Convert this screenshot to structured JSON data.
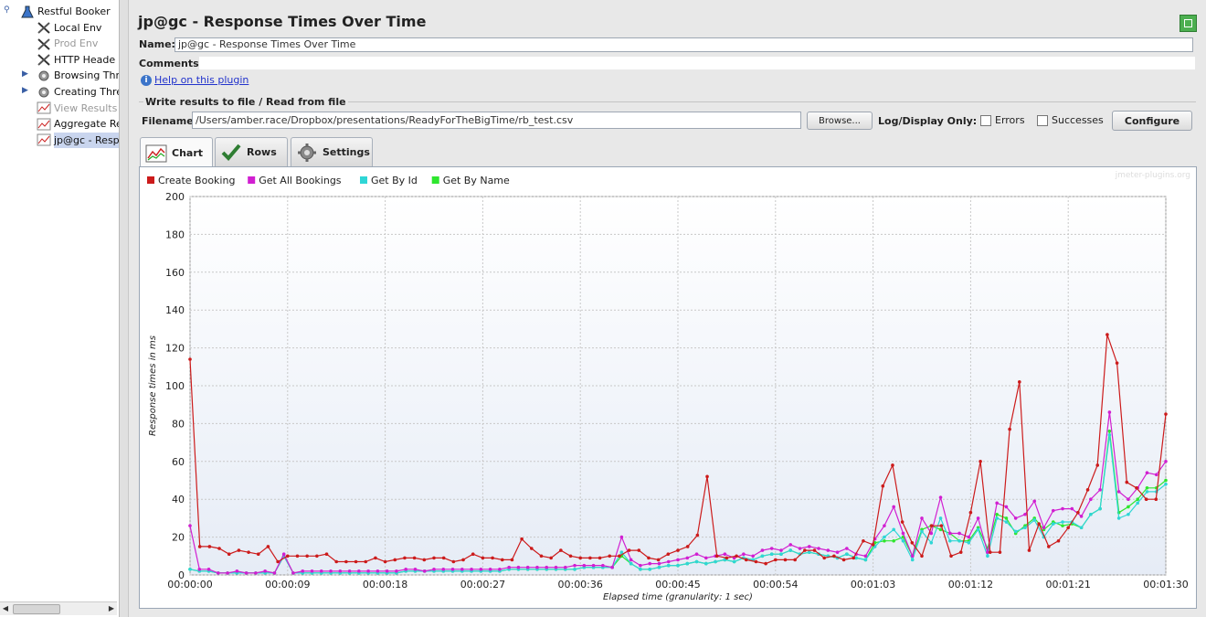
{
  "tree": {
    "items": [
      {
        "label": "Restful Booker",
        "icon": "flask-icon",
        "level": 0,
        "state": "normal"
      },
      {
        "label": "Local Env",
        "icon": "wrench-icon",
        "level": 1,
        "state": "normal"
      },
      {
        "label": "Prod Env",
        "icon": "wrench-icon",
        "level": 1,
        "state": "disabled"
      },
      {
        "label": "HTTP Heade",
        "icon": "wrench-icon",
        "level": 1,
        "state": "normal"
      },
      {
        "label": "Browsing Thr",
        "icon": "gear-icon",
        "level": 1,
        "state": "normal"
      },
      {
        "label": "Creating Thre",
        "icon": "gear-icon",
        "level": 1,
        "state": "normal"
      },
      {
        "label": "View Results",
        "icon": "graph-icon",
        "level": 1,
        "state": "disabled"
      },
      {
        "label": "Aggregate Re",
        "icon": "graph-icon",
        "level": 1,
        "state": "normal"
      },
      {
        "label": "jp@gc - Resp",
        "icon": "graph-icon",
        "level": 1,
        "state": "selected"
      }
    ]
  },
  "panel": {
    "title": "jp@gc - Response Times Over Time",
    "name_label": "Name:",
    "name_value": "jp@gc - Response Times Over Time",
    "comments_label": "Comments:",
    "help_link": "Help on this plugin",
    "file_section": "Write results to file / Read from file",
    "filename_label": "Filename",
    "filename_value": "/Users/amber.race/Dropbox/presentations/ReadyForTheBigTime/rb_test.csv",
    "browse_label": "Browse...",
    "log_display_label": "Log/Display Only:",
    "errors_label": "Errors",
    "successes_label": "Successes",
    "configure_label": "Configure"
  },
  "tabs": [
    {
      "label": "Chart"
    },
    {
      "label": "Rows"
    },
    {
      "label": "Settings"
    }
  ],
  "watermark": "jmeter-plugins.org",
  "colors": {
    "accent": "#3b74c9",
    "selected": "#c9d5ee"
  },
  "chart_data": {
    "type": "line",
    "title": "",
    "xlabel": "Elapsed time (granularity: 1 sec)",
    "ylabel": "Response times in ms",
    "ylim": [
      0,
      200
    ],
    "yticks": [
      0,
      20,
      40,
      60,
      80,
      100,
      120,
      140,
      160,
      180,
      200
    ],
    "xlim": [
      0,
      90
    ],
    "xtick_labels": [
      "00:00:00",
      "00:00:09",
      "00:00:18",
      "00:00:27",
      "00:00:36",
      "00:00:45",
      "00:00:54",
      "00:01:03",
      "00:01:12",
      "00:01:21",
      "00:01:30"
    ],
    "legend_position": "top-left",
    "series": [
      {
        "name": "Create Booking",
        "color": "#cc1b1b",
        "values": [
          114,
          15,
          15,
          14,
          11,
          13,
          12,
          11,
          15,
          7,
          10,
          10,
          10,
          10,
          11,
          7,
          7,
          7,
          7,
          9,
          7,
          8,
          9,
          9,
          8,
          9,
          9,
          7,
          8,
          11,
          9,
          9,
          8,
          8,
          19,
          14,
          10,
          9,
          13,
          10,
          9,
          9,
          9,
          10,
          10,
          13,
          13,
          9,
          8,
          11,
          13,
          15,
          21,
          52,
          10,
          9,
          10,
          8,
          7,
          6,
          8,
          8,
          8,
          13,
          13,
          9,
          10,
          8,
          9,
          18,
          16,
          47,
          58,
          28,
          17,
          10,
          26,
          26,
          10,
          12,
          33,
          60,
          12,
          12,
          77,
          102,
          13,
          27,
          15,
          18,
          25,
          33,
          45,
          58,
          127,
          112,
          49,
          46,
          40,
          40,
          85
        ]
      },
      {
        "name": "Get All Bookings",
        "color": "#d11fd1",
        "values": [
          26,
          3,
          3,
          1,
          1,
          2,
          1,
          1,
          2,
          1,
          11,
          1,
          2,
          2,
          2,
          2,
          2,
          2,
          2,
          2,
          2,
          2,
          2,
          3,
          3,
          2,
          3,
          3,
          3,
          3,
          3,
          3,
          3,
          3,
          4,
          4,
          4,
          4,
          4,
          4,
          4,
          5,
          5,
          5,
          5,
          4,
          20,
          8,
          5,
          6,
          6,
          7,
          8,
          9,
          11,
          9,
          10,
          11,
          9,
          11,
          10,
          13,
          14,
          13,
          16,
          14,
          15,
          14,
          13,
          12,
          14,
          11,
          10,
          19,
          26,
          36,
          22,
          10,
          30,
          22,
          41,
          22,
          22,
          20,
          30,
          12,
          38,
          36,
          30,
          32,
          39,
          25,
          34,
          35,
          35,
          31,
          40,
          45,
          86,
          44,
          40,
          46,
          54,
          53,
          60
        ]
      },
      {
        "name": "Get By Id",
        "color": "#2fd6d6",
        "values": [
          3,
          2,
          2,
          1,
          1,
          1,
          1,
          1,
          1,
          1,
          10,
          1,
          1,
          1,
          1,
          1,
          1,
          1,
          1,
          1,
          1,
          1,
          1,
          2,
          2,
          2,
          2,
          2,
          2,
          2,
          2,
          2,
          2,
          2,
          3,
          3,
          3,
          3,
          3,
          3,
          3,
          3,
          4,
          4,
          4,
          4,
          12,
          6,
          3,
          3,
          4,
          5,
          5,
          6,
          7,
          6,
          7,
          8,
          7,
          9,
          8,
          10,
          11,
          11,
          13,
          11,
          12,
          11,
          10,
          9,
          11,
          9,
          8,
          15,
          20,
          24,
          18,
          8,
          23,
          17,
          30,
          18,
          18,
          17,
          24,
          10,
          30,
          28,
          23,
          25,
          29,
          20,
          27,
          28,
          28,
          25,
          32,
          35,
          74,
          30,
          32,
          38,
          44,
          44,
          48
        ]
      },
      {
        "name": "Get By Name",
        "color": "#2ee62e",
        "values": [
          3,
          2,
          2,
          1,
          1,
          1,
          1,
          1,
          1,
          1,
          10,
          1,
          1,
          1,
          1,
          1,
          1,
          1,
          1,
          1,
          1,
          1,
          1,
          2,
          2,
          2,
          2,
          2,
          2,
          2,
          2,
          2,
          2,
          2,
          3,
          3,
          3,
          3,
          3,
          3,
          3,
          3,
          4,
          4,
          4,
          4,
          10,
          6,
          3,
          3,
          4,
          5,
          5,
          6,
          7,
          6,
          7,
          8,
          7,
          9,
          8,
          10,
          11,
          11,
          13,
          11,
          12,
          11,
          10,
          9,
          11,
          9,
          8,
          17,
          18,
          18,
          20,
          10,
          24,
          26,
          24,
          22,
          18,
          18,
          25,
          14,
          32,
          30,
          22,
          26,
          30,
          24,
          28,
          26,
          27,
          25,
          32,
          35,
          76,
          33,
          36,
          40,
          46,
          46,
          50
        ]
      }
    ]
  }
}
